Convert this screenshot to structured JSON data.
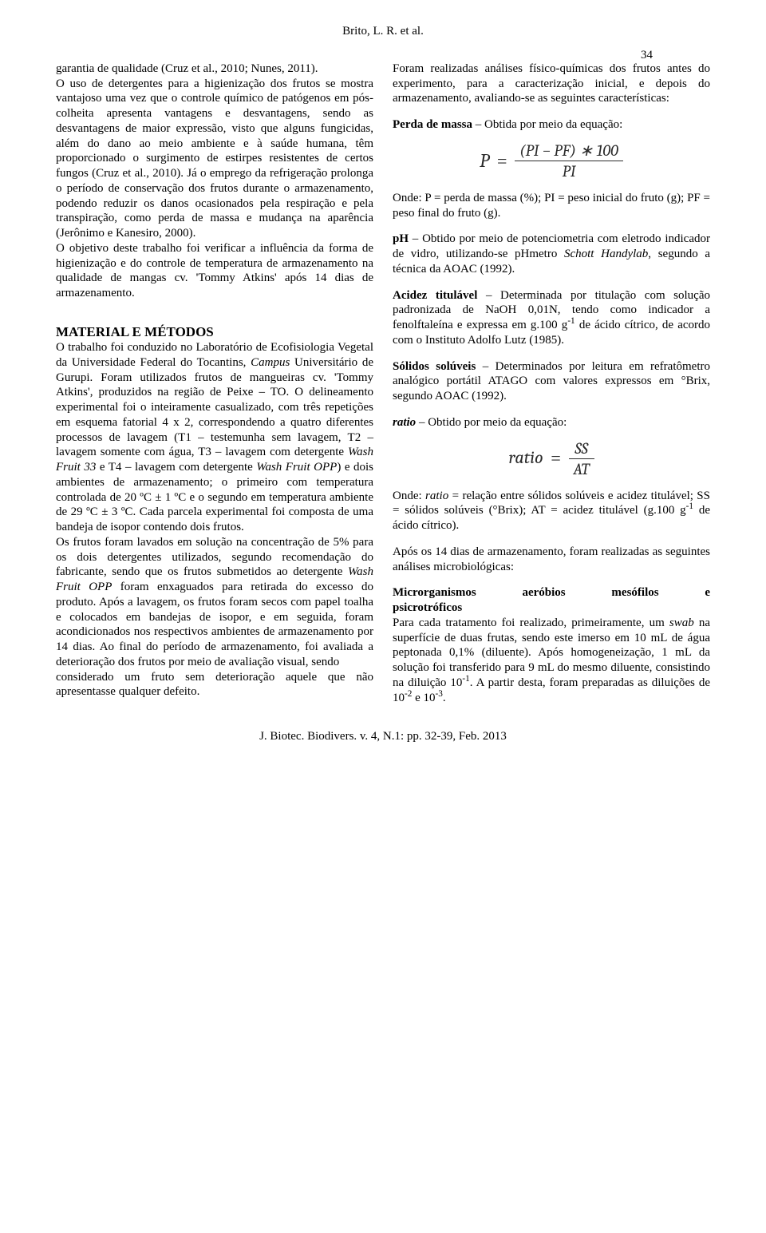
{
  "running_head": {
    "authors": "Brito, L. R. et al.",
    "page": "34"
  },
  "journal_footer": "J. Biotec. Biodivers. v. 4, N.1: pp. 32-39, Feb. 2013",
  "left_col": {
    "p1": "garantia de qualidade (Cruz et al., 2010; Nunes, 2011).",
    "p2a": "O uso de detergentes para a higienização dos frutos se mostra vantajoso uma vez que o controle químico de patógenos em pós-colheita apresenta vantagens e desvantagens, sendo as desvantagens de maior expressão, visto que alguns fungicidas, além do dano ao meio ambiente e à saúde humana, têm proporcionado o surgimento de estirpes resistentes de certos fungos (Cruz et al., 2010). Já o emprego da refrigeração prolonga o período de conservação dos frutos durante o armazenamento, podendo reduzir os danos ocasionados pela respiração e pela transpiração, como perda de massa e mudança na aparência (Jerônimo e Kanesiro, 2000).",
    "p2b": "O objetivo deste trabalho foi verificar a influência da forma de higienização e do controle de temperatura de armazenamento na qualidade de mangas cv. 'Tommy Atkins' após 14 dias de armazenamento.",
    "section_heading": "MATERIAL E MÉTODOS",
    "p3": "O trabalho foi conduzido no Laboratório de Ecofisiologia Vegetal da Universidade Federal do Tocantins, Campus Universitário de Gurupi. Foram utilizados frutos de mangueiras cv. 'Tommy Atkins', produzidos na região de Peixe – TO. O delineamento experimental foi o inteiramente casualizado, com três repetições em esquema fatorial 4 x 2, correspondendo a quatro diferentes processos de lavagem (T1 – testemunha sem lavagem, T2 – lavagem somente com água, T3 – lavagem com detergente Wash Fruit 33 e T4 – lavagem com detergente Wash Fruit OPP) e dois ambientes de armazenamento; o primeiro com temperatura controlada de 20 ºC ± 1 ºC e o segundo em temperatura ambiente de 29 ºC ± 3 ºC. Cada parcela experimental foi composta de uma bandeja de isopor contendo dois frutos.",
    "p4": "Os frutos foram lavados em solução na concentração de 5% para os dois detergentes utilizados, segundo recomendação do fabricante, sendo que os frutos submetidos ao detergente Wash Fruit OPP foram enxaguados para retirada do excesso do produto. Após a lavagem, os frutos foram secos com papel toalha e colocados em bandejas de isopor, e em seguida, foram acondicionados nos respectivos ambientes de armazenamento por 14 dias. Ao final do período de armazenamento, foi avaliada a deterioração dos frutos por meio de avaliação visual, sendo"
  },
  "right_col": {
    "p1": "considerado um fruto sem deterioração aquele que não apresentasse qualquer defeito.",
    "p2": "Foram realizadas análises físico-químicas dos frutos antes do experimento, para a caracterização inicial, e depois do armazenamento, avaliando-se as seguintes características:",
    "massa_label": "Perda de massa",
    "massa_after": " – Obtida por meio da equação:",
    "eq1": {
      "lhs": "P",
      "num": "(PI − PF) ∗ 100",
      "den": "PI"
    },
    "massa_def": "Onde: P = perda de massa (%); PI = peso inicial do fruto (g); PF = peso final do fruto (g).",
    "ph_label": "pH",
    "ph_after": " – Obtido por meio de potenciometria com eletrodo indicador de vidro, utilizando-se pHmetro ",
    "ph_italic": "Schott Handylab",
    "ph_tail": ", segundo a técnica da AOAC (1992).",
    "acidez_label": "Acidez titulável",
    "acidez_after": " – Determinada por titulação com solução padronizada de NaOH 0,01N, tendo como indicador a fenolftaleína e expressa em g.100 g",
    "acidez_sup": "-1",
    "acidez_tail": " de ácido cítrico, de acordo com o Instituto Adolfo Lutz (1985).",
    "ss_label": "Sólidos solúveis",
    "ss_after": " – Determinados por leitura em refratômetro analógico portátil ATAGO com valores expressos em °Brix, segundo AOAC (1992).",
    "ratio_label": "ratio",
    "ratio_after": " – Obtido por meio da equação:",
    "eq2": {
      "lhs": "ratio",
      "num": "SS",
      "den": "AT"
    },
    "ratio_def_a": "Onde: ",
    "ratio_def_b": "ratio",
    "ratio_def_c": " = relação entre sólidos solúveis e acidez titulável; SS = sólidos solúveis (°Brix); AT = acidez titulável (g.100 g",
    "ratio_def_sup": "-1",
    "ratio_def_d": " de ácido cítrico).",
    "after14": "Após os 14 dias de armazenamento, foram realizadas as seguintes análises microbiológicas:",
    "micro_label": "Microrganismos aeróbios mesófilos e psicrotróficos",
    "micro_body_a": "Para cada tratamento foi realizado, primeiramente, um ",
    "micro_body_b": "swab",
    "micro_body_c": " na superfície de duas frutas, sendo este imerso em 10 mL de água peptonada 0,1% (diluente). Após homogeneização, 1 mL da solução foi transferido para 9 mL do mesmo diluente, consistindo na diluição 10",
    "micro_sup1": "-1",
    "micro_body_d": ". A partir desta, foram preparadas as diluições de 10",
    "micro_sup2": "-2",
    "micro_body_e": " e 10",
    "micro_sup3": "-3",
    "micro_body_f": "."
  }
}
